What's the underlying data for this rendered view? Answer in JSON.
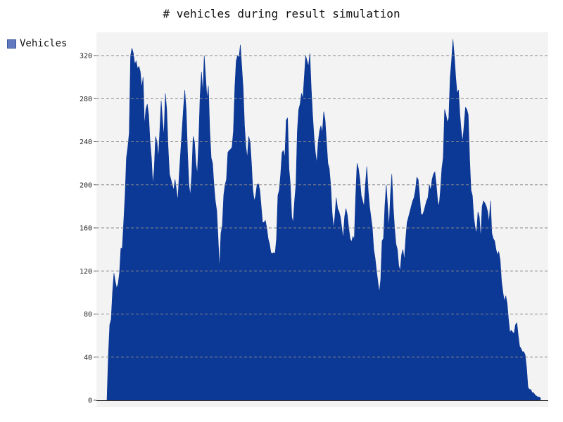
{
  "chart_data": {
    "type": "area",
    "title": "# vehicles during result simulation",
    "xlabel": "",
    "ylabel": "",
    "ylim": [
      0,
      340
    ],
    "yticks": [
      0,
      40,
      80,
      120,
      160,
      200,
      240,
      280,
      320
    ],
    "grid": "horizontal dashed",
    "legend_position": "top-left",
    "colors": {
      "fill": "#0c3896",
      "plot_bg": "#f3f3f3",
      "grid": "#888888",
      "legend_swatch": "#6079c0"
    },
    "series": [
      {
        "name": "Vehicles",
        "values": [
          0,
          42,
          70,
          75,
          100,
          118,
          110,
          104,
          108,
          118,
          141,
          141,
          165,
          190,
          225,
          235,
          248,
          320,
          327,
          322,
          312,
          315,
          308,
          310,
          305,
          290,
          300,
          255,
          270,
          275,
          265,
          240,
          225,
          200,
          215,
          245,
          240,
          225,
          250,
          278,
          260,
          245,
          285,
          270,
          235,
          210,
          205,
          200,
          195,
          205,
          195,
          185,
          210,
          230,
          250,
          270,
          288,
          270,
          230,
          200,
          190,
          210,
          245,
          240,
          220,
          210,
          240,
          282,
          305,
          285,
          320,
          300,
          280,
          292,
          250,
          225,
          220,
          200,
          185,
          176,
          150,
          122,
          155,
          162,
          190,
          200,
          205,
          230,
          232,
          233,
          235,
          250,
          290,
          315,
          320,
          318,
          330,
          310,
          290,
          255,
          235,
          225,
          245,
          240,
          220,
          195,
          185,
          190,
          200,
          201,
          195,
          180,
          165,
          165,
          167,
          160,
          150,
          145,
          137,
          136,
          137,
          136,
          150,
          190,
          195,
          210,
          230,
          232,
          225,
          260,
          262,
          215,
          200,
          170,
          165,
          185,
          200,
          250,
          270,
          275,
          285,
          280,
          300,
          320,
          315,
          310,
          322,
          290,
          265,
          245,
          230,
          220,
          240,
          250,
          255,
          248,
          268,
          260,
          240,
          220,
          215,
          200,
          175,
          160,
          170,
          188,
          178,
          175,
          170,
          160,
          150,
          170,
          178,
          172,
          160,
          150,
          147,
          152,
          150,
          190,
          220,
          215,
          205,
          190,
          185,
          180,
          200,
          217,
          195,
          180,
          170,
          160,
          140,
          132,
          120,
          110,
          100,
          112,
          148,
          150,
          180,
          200,
          180,
          160,
          190,
          210,
          180,
          160,
          145,
          140,
          125,
          120,
          135,
          140,
          130,
          150,
          165,
          170,
          175,
          180,
          185,
          188,
          195,
          207,
          205,
          190,
          173,
          172,
          175,
          180,
          185,
          188,
          200,
          195,
          205,
          210,
          212,
          200,
          185,
          180,
          195,
          215,
          225,
          270,
          265,
          258,
          262,
          300,
          315,
          335,
          320,
          300,
          285,
          288,
          265,
          250,
          240,
          255,
          272,
          270,
          265,
          225,
          195,
          190,
          170,
          160,
          155,
          175,
          170,
          150,
          180,
          185,
          183,
          180,
          175,
          165,
          185,
          155,
          150,
          148,
          140,
          135,
          138,
          130,
          110,
          100,
          92,
          97,
          90,
          75,
          63,
          65,
          63,
          62,
          70,
          72,
          60,
          50,
          48,
          45,
          45,
          42,
          30,
          12,
          10,
          10,
          7,
          7,
          5,
          4,
          3,
          3,
          2
        ]
      }
    ]
  }
}
